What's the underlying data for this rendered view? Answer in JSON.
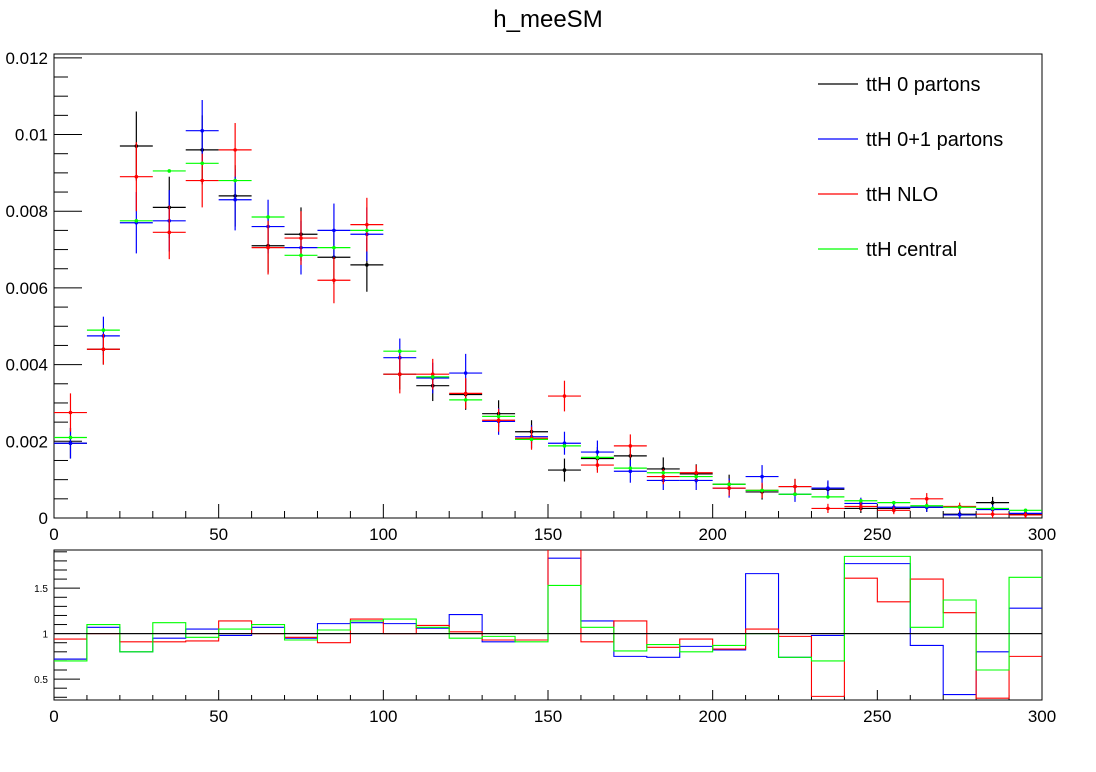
{
  "chart_data": [
    {
      "type": "scatter",
      "title": "h_meeSM",
      "xlabel": "",
      "ylabel": "",
      "xlim": [
        0,
        300
      ],
      "ylim": [
        0,
        0.0121
      ],
      "x_ticks": [
        "0",
        "50",
        "100",
        "150",
        "200",
        "250",
        "300"
      ],
      "y_ticks": [
        "0",
        "0.002",
        "0.004",
        "0.006",
        "0.008",
        "0.01",
        "0.012"
      ],
      "bin_width": 10,
      "legend_position": "top-right",
      "series": [
        {
          "name": "ttH 0 partons",
          "color": "#000000",
          "values": [
            0.00195,
            0.0044,
            0.0097,
            0.0081,
            0.0096,
            0.0084,
            0.0071,
            0.0074,
            0.0068,
            0.0066,
            0.00375,
            0.00345,
            0.00322,
            0.00272,
            0.00225,
            0.00125,
            0.00155,
            0.00162,
            0.00128,
            0.00115,
            0.00088,
            0.00068,
            0.00082,
            0.00075,
            0.00025,
            0.00025,
            0.00028,
            0.0001,
            0.0004,
            0.0001
          ],
          "errors": [
            0.0004,
            0.0004,
            0.0009,
            0.0008,
            0.0009,
            0.0008,
            0.0007,
            0.0007,
            0.0007,
            0.0007,
            0.0004,
            0.0004,
            0.0004,
            0.00035,
            0.0003,
            0.0003,
            0.0003,
            0.0003,
            0.0003,
            0.00025,
            0.00025,
            0.0002,
            0.0002,
            0.0002,
            0.00012,
            0.00012,
            0.00012,
            0.0001,
            0.00015,
            0.0001
          ]
        },
        {
          "name": "ttH 0+1 partons",
          "color": "#0000ff",
          "values": [
            0.00195,
            0.00475,
            0.0077,
            0.00775,
            0.0101,
            0.0083,
            0.0076,
            0.00705,
            0.0075,
            0.0074,
            0.00418,
            0.00365,
            0.00378,
            0.00252,
            0.00212,
            0.00195,
            0.00172,
            0.00122,
            0.00098,
            0.00098,
            0.00078,
            0.00108,
            0.00062,
            0.00078,
            0.00038,
            0.00028,
            0.00028,
            8e-05,
            0.00022,
            0.00012
          ],
          "errors": [
            0.0004,
            0.0005,
            0.0008,
            0.0008,
            0.0008,
            0.0008,
            0.0007,
            0.0007,
            0.0007,
            0.0007,
            0.0005,
            0.0004,
            0.0005,
            0.00035,
            0.0003,
            0.0003,
            0.0003,
            0.0003,
            0.00025,
            0.00025,
            0.00025,
            0.0003,
            0.0002,
            0.0002,
            0.00015,
            0.00012,
            0.00012,
            0.0001,
            0.00012,
            0.0001
          ]
        },
        {
          "name": "ttH NLO",
          "color": "#ff0000",
          "values": [
            0.00275,
            0.0044,
            0.0089,
            0.00745,
            0.0088,
            0.0096,
            0.00705,
            0.0073,
            0.0062,
            0.00765,
            0.00375,
            0.00375,
            0.00325,
            0.00255,
            0.00208,
            0.00318,
            0.00138,
            0.00188,
            0.00108,
            0.00118,
            0.00078,
            0.00072,
            0.00082,
            0.00025,
            0.0003,
            0.0002,
            0.0005,
            0.0003,
            0.0001,
            8e-05
          ],
          "errors": [
            0.0005,
            0.0004,
            0.0009,
            0.0007,
            0.0007,
            0.0007,
            0.0007,
            0.0007,
            0.0006,
            0.0007,
            0.0005,
            0.0004,
            0.0004,
            0.0003,
            0.0003,
            0.0004,
            0.0002,
            0.0003,
            0.0002,
            0.0002,
            0.0002,
            0.0002,
            0.0002,
            0.00012,
            0.00012,
            0.0001,
            0.00015,
            0.0001,
            0.0001,
            8e-05
          ]
        },
        {
          "name": "ttH central",
          "color": "#00ff00",
          "values": [
            0.0021,
            0.0049,
            0.00775,
            0.00905,
            0.00925,
            0.0088,
            0.00785,
            0.00685,
            0.00705,
            0.0075,
            0.00435,
            0.00368,
            0.00308,
            0.00265,
            0.00205,
            0.00188,
            0.00158,
            0.0013,
            0.00118,
            0.00108,
            0.00088,
            0.00072,
            0.00062,
            0.00055,
            0.00045,
            0.0004,
            0.00032,
            0.00028,
            0.00025,
            0.0002
          ],
          "errors": []
        }
      ]
    },
    {
      "type": "line",
      "title": "",
      "xlim": [
        0,
        300
      ],
      "ylim": [
        0.27,
        1.92
      ],
      "x_ticks": [
        "0",
        "50",
        "100",
        "150",
        "200",
        "250",
        "300"
      ],
      "y_ticks": [
        "0.5",
        "1",
        "1.5"
      ],
      "reference_line": 1,
      "series": [
        {
          "name": "",
          "color": "#000000",
          "values": [
            0.72,
            1.0,
            1.0,
            1.0,
            1.0,
            1.0,
            1.0,
            1.0,
            1.0,
            1.0,
            1.0,
            1.0,
            1.0,
            1.0,
            1.0,
            1.0,
            1.0,
            1.0,
            1.0,
            1.0,
            1.0,
            1.0,
            1.0,
            1.0,
            1.0,
            1.0,
            1.0,
            1.0,
            1.0,
            1.0
          ]
        },
        {
          "name": "",
          "color": "#0000ff",
          "values": [
            0.72,
            1.07,
            0.8,
            0.95,
            1.05,
            0.98,
            1.07,
            0.95,
            1.11,
            1.12,
            1.11,
            1.06,
            1.21,
            0.91,
            0.93,
            1.83,
            1.14,
            0.75,
            0.74,
            0.86,
            0.82,
            1.66,
            0.74,
            0.98,
            1.77,
            1.77,
            0.87,
            0.33,
            0.8,
            1.28
          ]
        },
        {
          "name": "",
          "color": "#ff0000",
          "values": [
            0.94,
            1.0,
            0.91,
            0.91,
            0.92,
            1.14,
            1.0,
            0.96,
            0.9,
            1.16,
            1.0,
            1.09,
            1.02,
            0.93,
            0.93,
            2.54,
            0.91,
            1.14,
            0.85,
            0.94,
            0.83,
            1.05,
            0.97,
            0.31,
            1.61,
            1.35,
            1.6,
            1.23,
            0.29,
            0.75
          ]
        },
        {
          "name": "",
          "color": "#00ff00",
          "values": [
            0.7,
            1.1,
            0.8,
            1.12,
            0.96,
            1.05,
            1.1,
            0.93,
            1.04,
            1.14,
            1.16,
            1.07,
            0.95,
            0.97,
            0.91,
            1.53,
            1.07,
            0.81,
            0.88,
            0.8,
            0.87,
            1.0,
            0.74,
            0.7,
            1.85,
            1.85,
            1.07,
            1.37,
            0.6,
            1.62
          ]
        }
      ]
    }
  ]
}
